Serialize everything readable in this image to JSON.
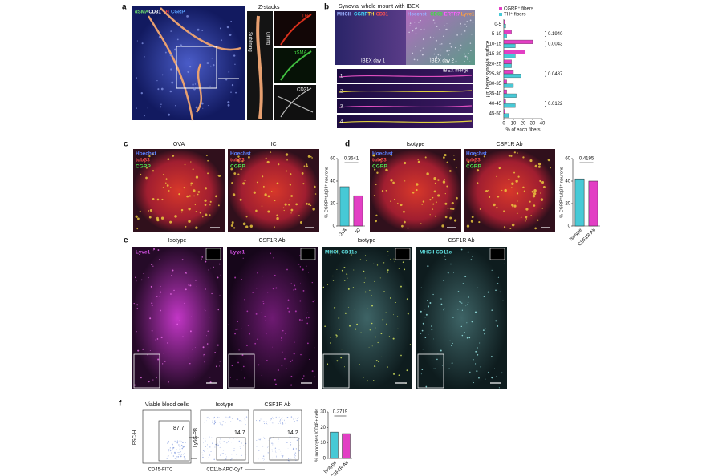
{
  "panels": {
    "a": {
      "letter": "a",
      "channels": [
        "αSMA",
        "CD31",
        "TH",
        "CGRP"
      ],
      "zstack_title": "Z-stacks",
      "side_labels": [
        "Sublining",
        "Lining"
      ],
      "insets": [
        "TH",
        "αSMA",
        "CD31"
      ]
    },
    "b": {
      "letter": "b",
      "title": "Synovial whole mount with IBEX",
      "image1_channels": [
        "MHCII",
        "CGRP",
        "TH",
        "CD31"
      ],
      "image2_channels": [
        "Hoechst",
        "CD68",
        "ERTR7",
        "Lyve1"
      ],
      "image1_label": "IBEX day 1",
      "image2_label": "IBEX day 2",
      "merge_label": "IBEX merge",
      "strips": [
        "1",
        "2",
        "3",
        "4"
      ],
      "chart": {
        "type": "hbar",
        "categories": [
          "0-5",
          "5-10",
          "10-15",
          "15-20",
          "20-25",
          "25-30",
          "30-35",
          "35-40",
          "40-45",
          "45-50"
        ],
        "series": [
          {
            "name": "CGRP⁺ fibers",
            "color": "#e23fc4",
            "values": [
              1,
              8,
              30,
              22,
              8,
              10,
              3,
              3,
              2,
              1
            ]
          },
          {
            "name": "TH⁺ fibers",
            "color": "#47c9d6",
            "values": [
              2,
              3,
              12,
              12,
              8,
              18,
              10,
              13,
              12,
              5
            ]
          }
        ],
        "pvalues": [
          null,
          "0.1940",
          "0.0043",
          null,
          null,
          "0.0487",
          null,
          null,
          "0.0122",
          null
        ],
        "xlim": [
          0,
          40
        ],
        "xticks": [
          0,
          10,
          20,
          30,
          40
        ],
        "xlabel": "% of each fibers",
        "ylabel": "μm below synovial surface"
      }
    },
    "c": {
      "letter": "c",
      "image_titles": [
        "OVA",
        "IC"
      ],
      "channels": [
        "Hoechst",
        "tubβ3",
        "CGRP"
      ],
      "chart": {
        "type": "bar",
        "categories": [
          "OVA",
          "IC"
        ],
        "values": [
          35,
          27
        ],
        "colors": [
          "#47c9d6",
          "#e23fc4"
        ],
        "ylim": [
          0,
          60
        ],
        "yticks": [
          0,
          20,
          40,
          60
        ],
        "ylabel": "% CGRP⁺tubβ3⁺ neurons",
        "pvalue": "0.3641"
      }
    },
    "d": {
      "letter": "d",
      "image_titles": [
        "Isotype",
        "CSF1R Ab"
      ],
      "channels": [
        "Hoechst",
        "tubβ3",
        "CGRP"
      ],
      "chart": {
        "type": "bar",
        "categories": [
          "Isotype",
          "CSF1R Ab"
        ],
        "values": [
          42,
          40
        ],
        "colors": [
          "#47c9d6",
          "#e23fc4"
        ],
        "ylim": [
          0,
          60
        ],
        "yticks": [
          0,
          20,
          40,
          60
        ],
        "ylabel": "% CGRP⁺tubβ3⁺ neurons",
        "pvalue": "0.4195"
      }
    },
    "e": {
      "letter": "e",
      "image_titles": [
        "Isotype",
        "CSF1R Ab",
        "Isotype",
        "CSF1R Ab"
      ],
      "channels": [
        "Lyve1",
        "Lyve1",
        "MHCII CD11c",
        "MHCII CD11c"
      ]
    },
    "f": {
      "letter": "f",
      "plot_titles": [
        "Viable blood cells",
        "Isotype",
        "CSF1R Ab"
      ],
      "gate_values": [
        "87.7",
        "14.7",
        "14.2"
      ],
      "axis_labels": {
        "x1": "CD45-FITC",
        "y1": "FSC-H",
        "x2": "CD11b-APC-Cy7",
        "y2": "Ly6G-PB"
      },
      "chart": {
        "type": "bar",
        "categories": [
          "Isotype",
          "CSF1R Ab"
        ],
        "values": [
          17,
          16
        ],
        "colors": [
          "#47c9d6",
          "#e23fc4"
        ],
        "ylim": [
          0,
          30
        ],
        "yticks": [
          0,
          10,
          20,
          30
        ],
        "ylabel": "% monocytes /CD45+ cells",
        "pvalue": "0.2719"
      }
    }
  }
}
